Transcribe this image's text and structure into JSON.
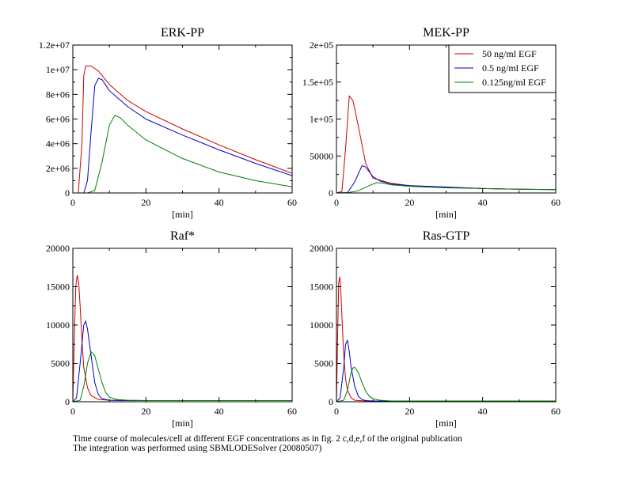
{
  "chart_data": [
    {
      "type": "line",
      "title": "ERK-PP",
      "xlabel": "[min]",
      "ylabel": "",
      "xlim": [
        0,
        60
      ],
      "ylim": [
        0,
        12000000
      ],
      "xticks": [
        "0",
        "20",
        "40",
        "60"
      ],
      "yticks": [
        "0",
        "2e+06",
        "4e+06",
        "6e+06",
        "8e+06",
        "1e+07",
        "1.2e+07"
      ],
      "series": [
        {
          "name": "50 ng/ml EGF",
          "color": "#cc0000",
          "x": [
            0,
            1.5,
            2.5,
            3,
            3.5,
            5,
            7,
            10,
            15,
            20,
            30,
            40,
            50,
            60
          ],
          "y": [
            0,
            0,
            4000000,
            9500000,
            10300000,
            10300000,
            9900000,
            8800000,
            7500000,
            6600000,
            5200000,
            3900000,
            2700000,
            1600000
          ]
        },
        {
          "name": "0.5 ng/ml EGF",
          "color": "#0000cc",
          "x": [
            0,
            3,
            4,
            5,
            6,
            7,
            8,
            10,
            15,
            20,
            30,
            40,
            50,
            60
          ],
          "y": [
            0,
            0,
            1000000,
            5000000,
            8700000,
            9300000,
            9200000,
            8300000,
            7000000,
            6000000,
            4700000,
            3500000,
            2400000,
            1400000
          ]
        },
        {
          "name": "0.125ng/ml EGF",
          "color": "#008000",
          "x": [
            0,
            4,
            6,
            8,
            10,
            11.5,
            13,
            15,
            20,
            30,
            40,
            50,
            60
          ],
          "y": [
            0,
            0,
            200000,
            2500000,
            5500000,
            6300000,
            6100000,
            5500000,
            4300000,
            2800000,
            1700000,
            1000000,
            500000
          ]
        }
      ]
    },
    {
      "type": "line",
      "title": "MEK-PP",
      "xlabel": "[min]",
      "ylabel": "",
      "xlim": [
        0,
        60
      ],
      "ylim": [
        0,
        200000
      ],
      "xticks": [
        "0",
        "20",
        "40",
        "60"
      ],
      "yticks": [
        "0",
        "50000",
        "1e+05",
        "1.5e+05",
        "2e+05"
      ],
      "legend": "top-right",
      "series": [
        {
          "name": "50 ng/ml EGF",
          "color": "#cc0000",
          "x": [
            0,
            1.5,
            2.5,
            3.5,
            4.5,
            6,
            8,
            10,
            15,
            20,
            30,
            40,
            50,
            60
          ],
          "y": [
            0,
            2000,
            60000,
            131000,
            125000,
            90000,
            40000,
            20000,
            13000,
            10000,
            8000,
            6000,
            5000,
            4500
          ]
        },
        {
          "name": "0.5 ng/ml EGF",
          "color": "#0000cc",
          "x": [
            0,
            3,
            5,
            7,
            8,
            10,
            12,
            15,
            20,
            30,
            40,
            50,
            60
          ],
          "y": [
            0,
            500,
            15000,
            37000,
            35000,
            22000,
            16000,
            12000,
            10000,
            8000,
            6000,
            5000,
            4500
          ]
        },
        {
          "name": "0.125ng/ml EGF",
          "color": "#008000",
          "x": [
            0,
            3,
            6,
            9,
            11,
            13,
            15,
            20,
            30,
            40,
            50,
            60
          ],
          "y": [
            0,
            200,
            3000,
            10000,
            14000,
            13000,
            11000,
            9000,
            7000,
            6000,
            5000,
            4500
          ]
        }
      ]
    },
    {
      "type": "line",
      "title": "Raf*",
      "xlabel": "[min]",
      "ylabel": "",
      "xlim": [
        0,
        60
      ],
      "ylim": [
        0,
        20000
      ],
      "xticks": [
        "0",
        "20",
        "40",
        "60"
      ],
      "yticks": [
        "0",
        "5000",
        "10000",
        "15000",
        "20000"
      ],
      "series": [
        {
          "name": "50 ng/ml EGF",
          "color": "#cc0000",
          "x": [
            0,
            0.4,
            0.8,
            1.2,
            1.6,
            2,
            2.5,
            3,
            4,
            5,
            7,
            10,
            20,
            40,
            60
          ],
          "y": [
            0,
            8000,
            15000,
            16500,
            15500,
            12500,
            8000,
            4500,
            1800,
            800,
            300,
            200,
            150,
            150,
            150
          ]
        },
        {
          "name": "0.5 ng/ml EGF",
          "color": "#0000cc",
          "x": [
            0,
            1,
            2,
            3,
            3.5,
            4,
            5,
            6,
            7,
            8,
            10,
            15,
            20,
            25
          ],
          "y": [
            0,
            500,
            5000,
            10000,
            10500,
            9500,
            6000,
            2500,
            900,
            400,
            200,
            150,
            150,
            150
          ]
        },
        {
          "name": "0.125ng/ml EGF",
          "color": "#008000",
          "x": [
            0,
            2,
            3,
            4,
            5,
            6,
            7,
            8,
            9,
            10,
            12,
            15,
            20,
            40,
            60
          ],
          "y": [
            0,
            200,
            2000,
            5000,
            6500,
            6000,
            4200,
            2500,
            1200,
            600,
            300,
            200,
            150,
            150,
            150
          ]
        }
      ]
    },
    {
      "type": "line",
      "title": "Ras-GTP",
      "xlabel": "[min]",
      "ylabel": "",
      "xlim": [
        0,
        60
      ],
      "ylim": [
        0,
        20000
      ],
      "xticks": [
        "0",
        "20",
        "40",
        "60"
      ],
      "yticks": [
        "0",
        "5000",
        "10000",
        "15000",
        "20000"
      ],
      "series": [
        {
          "name": "50 ng/ml EGF",
          "color": "#cc0000",
          "x": [
            0,
            0.3,
            0.6,
            0.9,
            1.2,
            1.6,
            2,
            2.5,
            3,
            4,
            5,
            8,
            20,
            60
          ],
          "y": [
            0,
            8000,
            15500,
            16300,
            14500,
            10000,
            6000,
            3000,
            1500,
            500,
            200,
            100,
            100,
            100
          ]
        },
        {
          "name": "0.5 ng/ml EGF",
          "color": "#0000cc",
          "x": [
            0,
            1,
            2,
            2.5,
            3,
            3.5,
            4,
            5,
            6,
            7,
            8,
            10,
            15,
            25
          ],
          "y": [
            0,
            500,
            4500,
            7500,
            8000,
            6500,
            4500,
            2000,
            700,
            300,
            150,
            100,
            100,
            100
          ]
        },
        {
          "name": "0.125ng/ml EGF",
          "color": "#008000",
          "x": [
            0,
            2,
            3,
            4,
            4.5,
            5,
            6,
            7,
            8,
            9,
            10,
            12,
            15,
            20,
            60
          ],
          "y": [
            0,
            200,
            1500,
            3800,
            4400,
            4500,
            3800,
            2500,
            1400,
            700,
            400,
            200,
            100,
            100,
            100
          ]
        }
      ]
    }
  ],
  "caption": {
    "line1": "Time course of molecules/cell at different EGF concentrations as in fig. 2 c,d,e,f of the original publication",
    "line2": "The integration was performed using SBMLODESolver (20080507)"
  }
}
